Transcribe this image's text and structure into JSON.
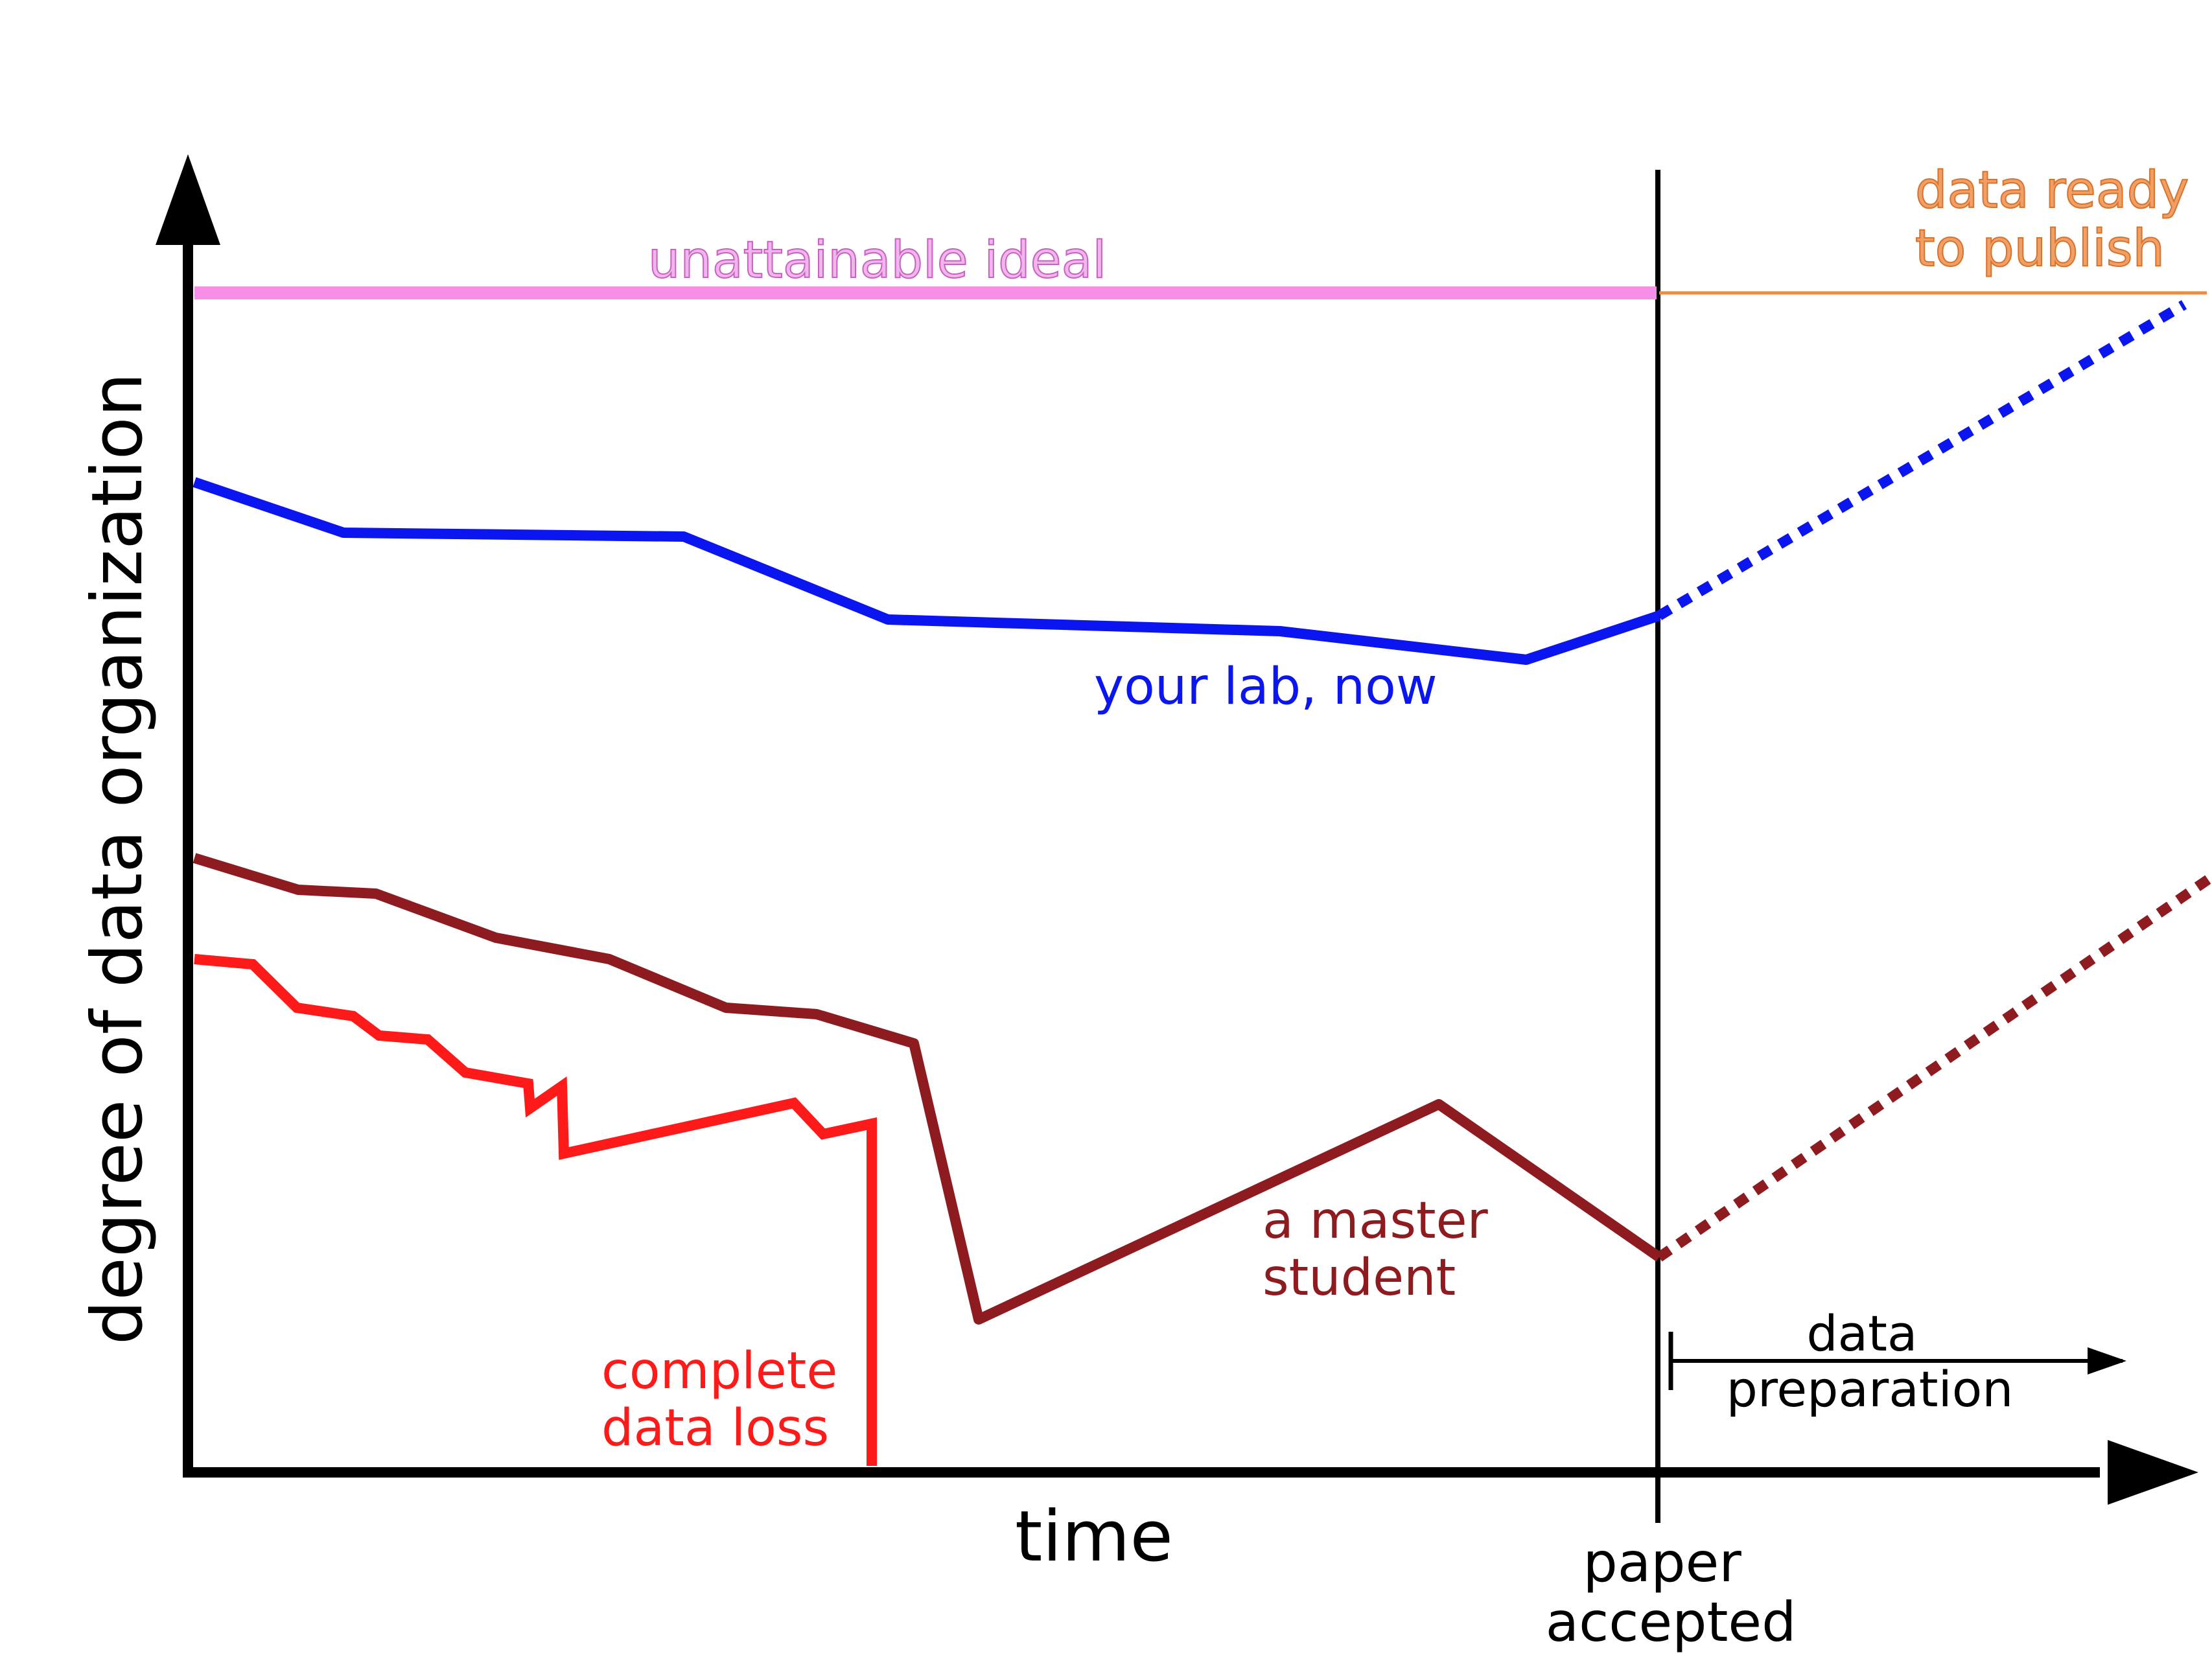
{
  "axes": {
    "y_label": "degree of data organization",
    "x_label": "time"
  },
  "marker": {
    "line1": "paper",
    "line2": "accepted"
  },
  "ideal": {
    "label": "unattainable ideal",
    "color": "#f78ee8",
    "text_color": "#c861c0"
  },
  "ready": {
    "line1": "data ready",
    "line2": "to publish",
    "color": "#f08a3c",
    "text_color": "#d9722a"
  },
  "lab": {
    "label": "your lab, now",
    "color": "#0a15f0"
  },
  "master": {
    "line1": "a master",
    "line2": "student",
    "color": "#8e1b1f"
  },
  "loss": {
    "line1": "complete",
    "line2": "data loss",
    "color": "#ff1a1a"
  },
  "prep": {
    "line1": "data",
    "line2": "preparation"
  }
}
